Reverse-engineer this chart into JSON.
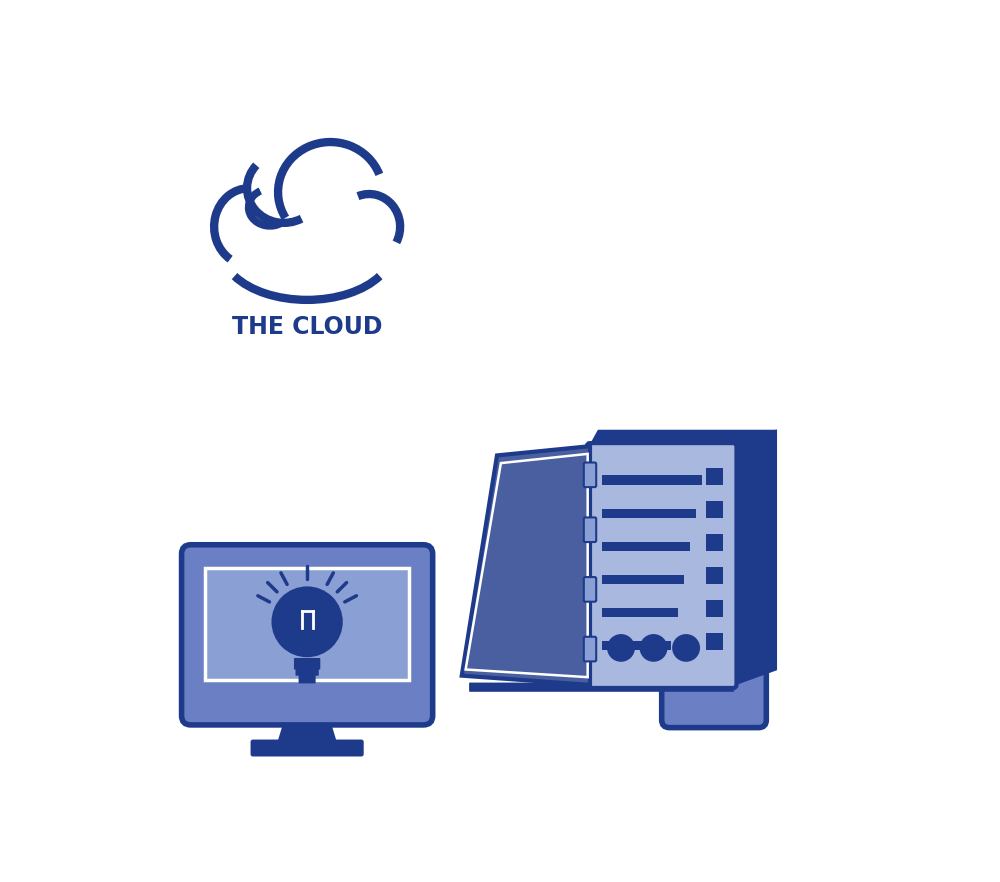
{
  "bg_color": "#ffffff",
  "dark_blue": "#1e3a8a",
  "mid_blue": "#6b7fc4",
  "light_blue": "#8a9fd4",
  "lighter_blue": "#a8b8de",
  "door_blue": "#4a5fa0",
  "cloud_label": "THE CLOUD"
}
